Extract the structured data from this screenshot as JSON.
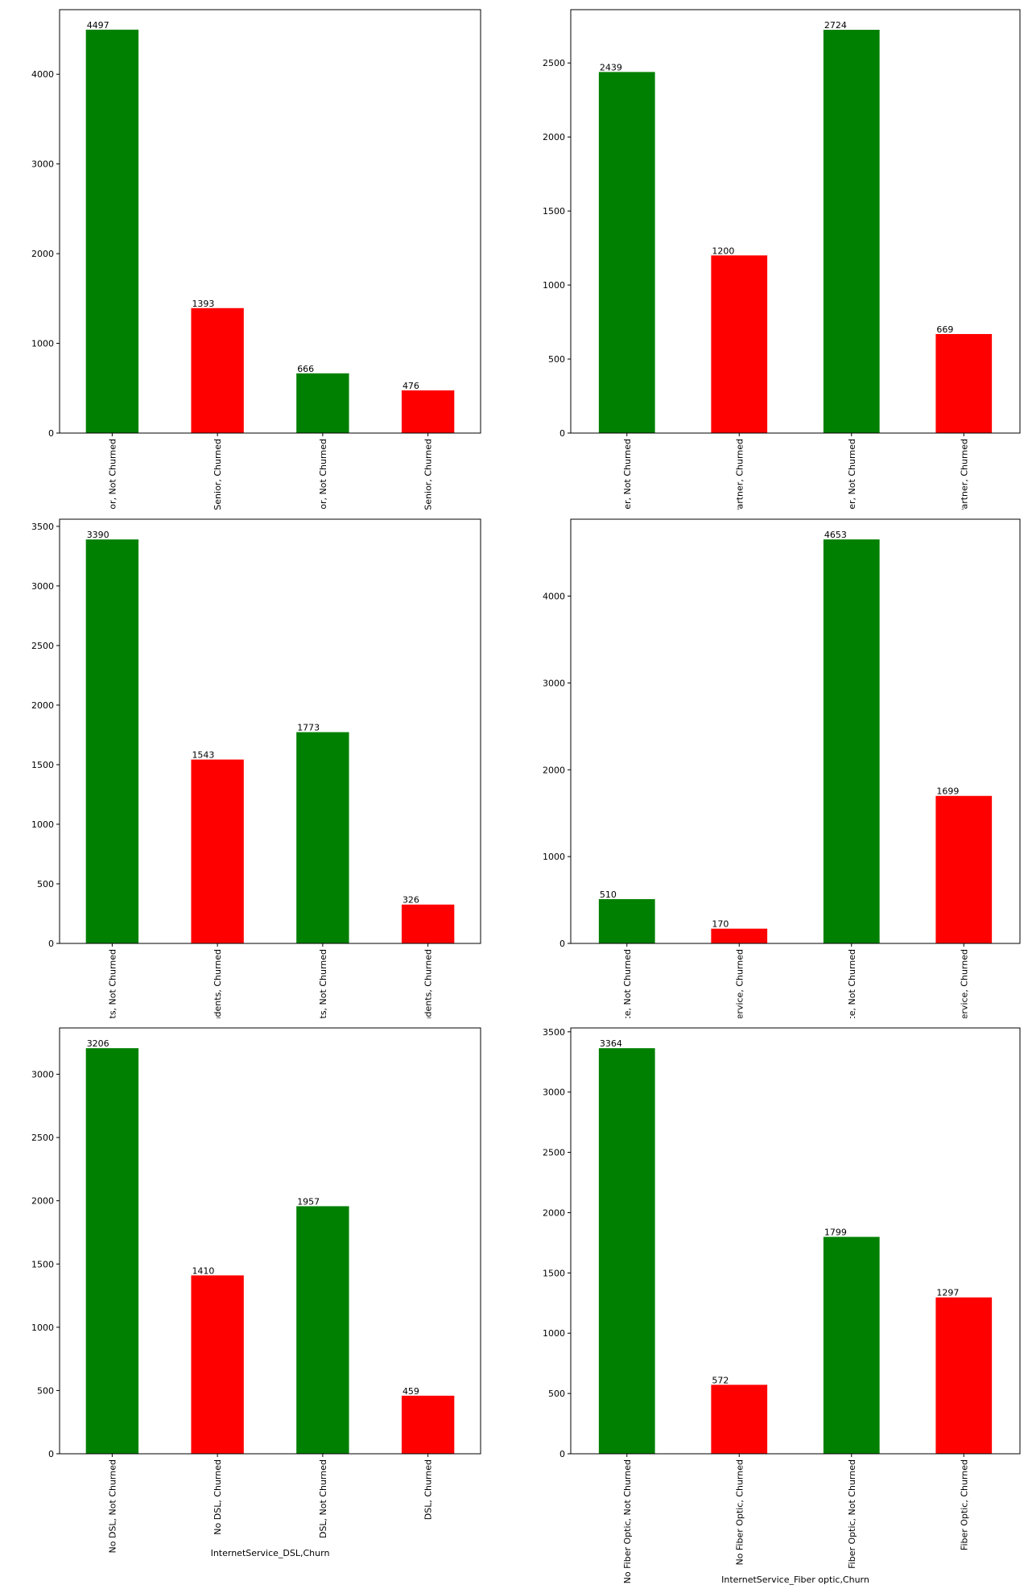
{
  "colors": {
    "not_churned": "#008000",
    "churned": "#ff0000"
  },
  "chart_data": [
    {
      "type": "bar",
      "title": "",
      "xlabel": "",
      "ylabel": "",
      "categories": [
        "Not Senior, Not Churned",
        "Not Senior, Churned",
        "Senior, Not Churned",
        "Senior, Churned"
      ],
      "values": [
        4497,
        1393,
        666,
        476
      ],
      "bar_colors": [
        "#008000",
        "#ff0000",
        "#008000",
        "#ff0000"
      ],
      "data_labels": [
        "4497",
        "1393",
        "666",
        "476"
      ],
      "yticks": [
        0,
        1000,
        2000,
        3000,
        4000
      ],
      "ylim": [
        0,
        4720
      ],
      "grid": false
    },
    {
      "type": "bar",
      "title": "",
      "xlabel": "",
      "ylabel": "",
      "categories": [
        "No Partner, Not Churned",
        "No Partner, Churned",
        "Partner, Not Churned",
        "Partner, Churned"
      ],
      "values": [
        2439,
        1200,
        2724,
        669
      ],
      "bar_colors": [
        "#008000",
        "#ff0000",
        "#008000",
        "#ff0000"
      ],
      "data_labels": [
        "2439",
        "1200",
        "2724",
        "669"
      ],
      "yticks": [
        0,
        500,
        1000,
        1500,
        2000,
        2500
      ],
      "ylim": [
        0,
        2860
      ],
      "grid": false
    },
    {
      "type": "bar",
      "title": "",
      "xlabel": "",
      "ylabel": "",
      "categories": [
        "No Dependents, Not Churned",
        "No Dependents, Churned",
        "Dependents, Not Churned",
        "Dependents, Churned"
      ],
      "values": [
        3390,
        1543,
        1773,
        326
      ],
      "bar_colors": [
        "#008000",
        "#ff0000",
        "#008000",
        "#ff0000"
      ],
      "data_labels": [
        "3390",
        "1543",
        "1773",
        "326"
      ],
      "yticks": [
        0,
        500,
        1000,
        1500,
        2000,
        2500,
        3000,
        3500
      ],
      "ylim": [
        0,
        3560
      ],
      "grid": false
    },
    {
      "type": "bar",
      "title": "",
      "xlabel": "",
      "ylabel": "",
      "categories": [
        "No Phone Service, Not Churned",
        "No Phone Service, Churned",
        "Phone Service, Not Churned",
        "Phone Service, Churned"
      ],
      "values": [
        510,
        170,
        4653,
        1699
      ],
      "bar_colors": [
        "#008000",
        "#ff0000",
        "#008000",
        "#ff0000"
      ],
      "data_labels": [
        "510",
        "170",
        "4653",
        "1699"
      ],
      "yticks": [
        0,
        1000,
        2000,
        3000,
        4000
      ],
      "ylim": [
        0,
        4886
      ],
      "grid": false
    },
    {
      "type": "bar",
      "title": "",
      "xlabel": "InternetService_DSL,Churn",
      "ylabel": "",
      "categories": [
        "No DSL, Not Churned",
        "No DSL, Churned",
        "DSL, Not Churned",
        "DSL, Churned"
      ],
      "values": [
        3206,
        1410,
        1957,
        459
      ],
      "bar_colors": [
        "#008000",
        "#ff0000",
        "#008000",
        "#ff0000"
      ],
      "data_labels": [
        "3206",
        "1410",
        "1957",
        "459"
      ],
      "yticks": [
        0,
        500,
        1000,
        1500,
        2000,
        2500,
        3000
      ],
      "ylim": [
        0,
        3366
      ],
      "grid": false
    },
    {
      "type": "bar",
      "title": "",
      "xlabel": "InternetService_Fiber optic,Churn",
      "ylabel": "",
      "categories": [
        "No Fiber Optic, Not Churned",
        "No Fiber Optic, Churned",
        "Fiber Optic, Not Churned",
        "Fiber Optic, Churned"
      ],
      "values": [
        3364,
        572,
        1799,
        1297
      ],
      "bar_colors": [
        "#008000",
        "#ff0000",
        "#008000",
        "#ff0000"
      ],
      "data_labels": [
        "3364",
        "572",
        "1799",
        "1297"
      ],
      "yticks": [
        0,
        500,
        1000,
        1500,
        2000,
        2500,
        3000,
        3500
      ],
      "ylim": [
        0,
        3532
      ],
      "grid": false
    }
  ]
}
